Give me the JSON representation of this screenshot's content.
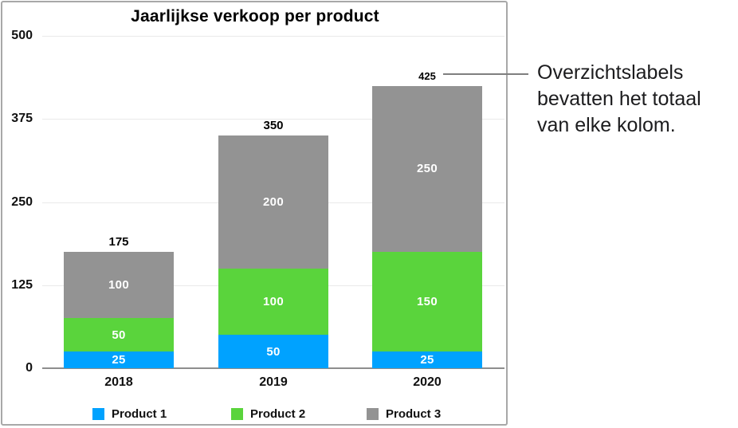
{
  "chart_data": {
    "type": "bar",
    "subtype": "stacked-vertical",
    "title": "Jaarlijkse verkoop per product",
    "categories": [
      "2018",
      "2019",
      "2020"
    ],
    "series": [
      {
        "name": "Product 1",
        "color": "#00A2FF",
        "values": [
          25,
          50,
          25
        ]
      },
      {
        "name": "Product 2",
        "color": "#5AD43C",
        "values": [
          50,
          100,
          150
        ]
      },
      {
        "name": "Product 3",
        "color": "#939393",
        "values": [
          100,
          200,
          250
        ]
      }
    ],
    "totals": [
      175,
      350,
      425
    ],
    "y_ticks": [
      0,
      125,
      250,
      375,
      500
    ],
    "ylim": [
      0,
      500
    ],
    "xlabel": "",
    "ylabel": "",
    "grid": true,
    "legend_position": "bottom",
    "value_labels": "white-inside-segments",
    "total_labels": "black-above-columns"
  },
  "annotation": {
    "lines": [
      "Overzichtslabels",
      "bevatten het totaal",
      "van elke kolom."
    ],
    "text": "Overzichtslabels bevatten het totaal van elke kolom.",
    "points_to_total": "425"
  },
  "colors": {
    "panel_border": "#a8a8a8",
    "gridline": "#e9e9e9",
    "axis_line": "#8e8e8e",
    "callout_line": "#7f7f7f",
    "annotation_text": "#1c1c1e",
    "background": "#ffffff"
  }
}
